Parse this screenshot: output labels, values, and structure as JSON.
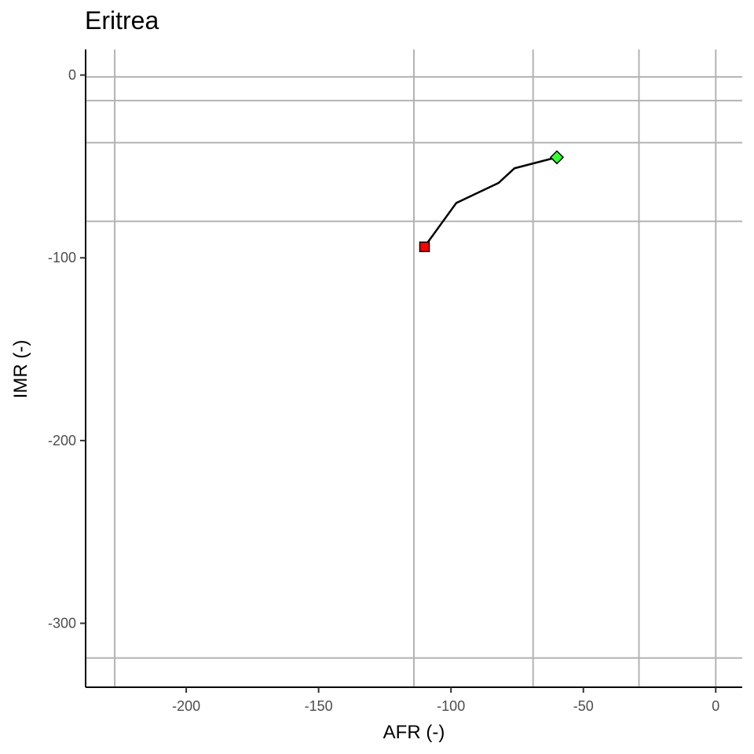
{
  "chart_data": {
    "type": "line",
    "title": "Eritrea",
    "xlabel": "AFR (-)",
    "ylabel": "IMR (-)",
    "xlim": [
      -238,
      10
    ],
    "ylim": [
      -335,
      14
    ],
    "x_ticks": [
      -200,
      -150,
      -100,
      -50,
      0
    ],
    "y_ticks": [
      0,
      -100,
      -200,
      -300
    ],
    "grid_vertical_x": [
      -227,
      -114,
      -69,
      -29,
      0
    ],
    "grid_horizontal_y": [
      -1,
      -14,
      -37,
      -80,
      -319
    ],
    "series": [
      {
        "x": [
          -110,
          -98,
          -82,
          -76,
          -60
        ],
        "y": [
          -94,
          -70,
          -59,
          -51,
          -45
        ],
        "color": "#000000"
      }
    ],
    "start_marker": {
      "shape": "square",
      "x": -110,
      "y": -94,
      "color": "#ff0000"
    },
    "end_marker": {
      "shape": "diamond",
      "x": -60,
      "y": -45,
      "color": "#33ff33"
    },
    "grid_color": "#b3b3b3"
  }
}
